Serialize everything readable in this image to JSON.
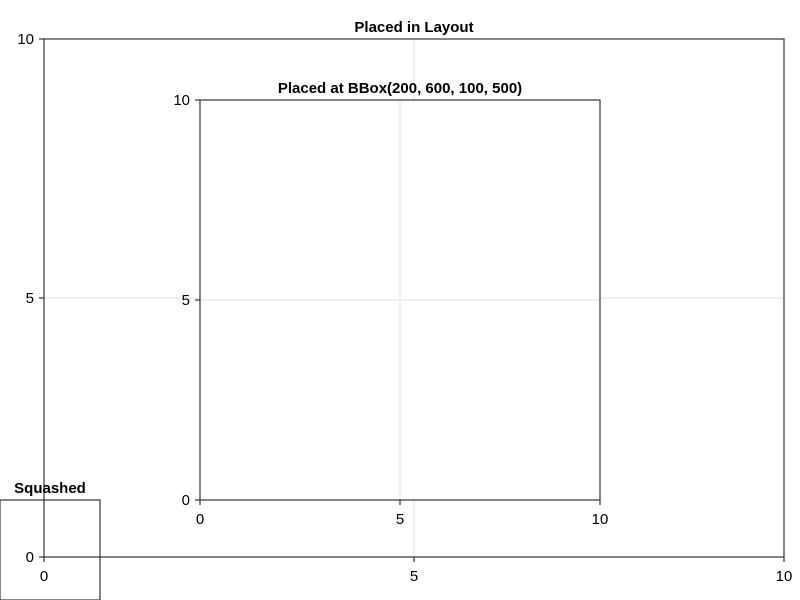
{
  "chart_data": [
    {
      "type": "scatter",
      "title": "Placed in Layout",
      "xlim": [
        0,
        10
      ],
      "ylim": [
        0,
        10
      ],
      "xticks": [
        "0",
        "5",
        "10"
      ],
      "yticks": [
        "0",
        "5",
        "10"
      ],
      "grid": true,
      "series": []
    },
    {
      "type": "scatter",
      "title": "Placed at BBox(200, 600, 100, 500)",
      "xlim": [
        0,
        10
      ],
      "ylim": [
        0,
        10
      ],
      "xticks": [
        "0",
        "5",
        "10"
      ],
      "yticks": [
        "0",
        "5",
        "10"
      ],
      "grid": true,
      "series": []
    },
    {
      "type": "scatter",
      "title": "Squashed",
      "grid": false,
      "series": []
    }
  ]
}
